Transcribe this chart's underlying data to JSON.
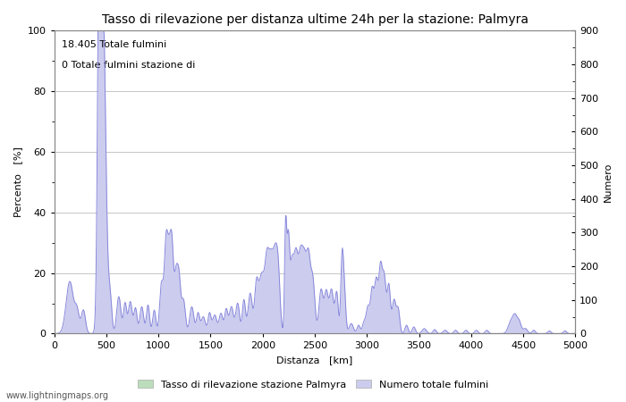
{
  "title": "Tasso di rilevazione per distanza ultime 24h per la stazione: Palmyra",
  "xlabel": "Distanza   [km]",
  "ylabel_left": "Percento   [%]",
  "ylabel_right": "Numero",
  "annotation_line1": "18.405 Totale fulmini",
  "annotation_line2": "0 Totale fulmini stazione di",
  "xlim": [
    0,
    5000
  ],
  "ylim_left": [
    0,
    100
  ],
  "ylim_right": [
    0,
    900
  ],
  "xticks": [
    0,
    500,
    1000,
    1500,
    2000,
    2500,
    3000,
    3500,
    4000,
    4500,
    5000
  ],
  "yticks_left": [
    0,
    20,
    40,
    60,
    80,
    100
  ],
  "yticks_right": [
    0,
    100,
    200,
    300,
    400,
    500,
    600,
    700,
    800,
    900
  ],
  "legend_label_green": "Tasso di rilevazione stazione Palmyra",
  "legend_label_blue": "Numero totale fulmini",
  "watermark": "www.lightningmaps.org",
  "line_color": "#8888dd",
  "fill_color": "#ccccee",
  "green_fill_color": "#bbddbb",
  "background_color": "#ffffff",
  "grid_color": "#bbbbbb",
  "title_fontsize": 10,
  "label_fontsize": 8,
  "tick_fontsize": 8,
  "annotation_fontsize": 8,
  "watermark_fontsize": 7
}
